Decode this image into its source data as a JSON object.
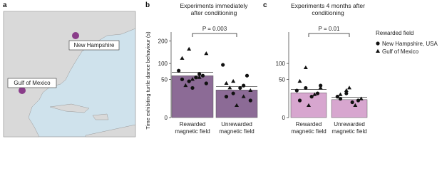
{
  "map": {
    "panel_label": "a",
    "labels": [
      "New Hampshire",
      "Gulf of Mexico"
    ]
  },
  "chart_data": [
    {
      "type": "bar",
      "panel_label": "b",
      "title": "Experiments immediately after conditioning",
      "y_label": "Time exhibiting turtle dance behaviour (s)",
      "categories": [
        "Rewarded magnetic field",
        "Unrewarded magnetic field"
      ],
      "values": [
        60,
        26
      ],
      "errors": [
        10,
        7
      ],
      "color": "#8c6b96",
      "yscale": "sqrt",
      "ylim": [
        0,
        250
      ],
      "yticks": [
        0,
        50,
        100,
        200
      ],
      "significance": "P = 0.003",
      "series": [
        {
          "name": "New Hampshire, USA",
          "marker": "circle",
          "values": [
            [
              75,
              60,
              55,
              45,
              50,
              40,
              65,
              30
            ],
            [
              95,
              60,
              30,
              20,
              15,
              10,
              35
            ]
          ]
        },
        {
          "name": "Gulf of Mexico",
          "marker": "triangle",
          "values": [
            [
              160,
              120,
              140,
              55,
              50,
              35
            ],
            [
              45,
              40,
              25,
              15,
              5,
              30
            ]
          ]
        }
      ]
    },
    {
      "type": "bar",
      "panel_label": "c",
      "title": "Experiments 4 months after conditioning",
      "categories": [
        "Rewarded magnetic field",
        "Unrewarded magnetic field"
      ],
      "values": [
        21,
        11
      ],
      "errors": [
        6,
        3
      ],
      "color": "#d7a6cf",
      "yscale": "sqrt",
      "ylim": [
        0,
        250
      ],
      "yticks": [
        0,
        50,
        100
      ],
      "significance": "P = 0.01",
      "legend_title": "Rewarded field",
      "series": [
        {
          "name": "New Hampshire, USA",
          "marker": "circle",
          "values": [
            [
              25,
              20,
              15,
              30,
              10,
              35
            ],
            [
              15,
              10,
              8,
              20,
              12
            ]
          ]
        },
        {
          "name": "Gulf of Mexico",
          "marker": "triangle",
          "values": [
            [
              85,
              45,
              30,
              18,
              5
            ],
            [
              25,
              18,
              12,
              5,
              30
            ]
          ]
        }
      ]
    }
  ]
}
